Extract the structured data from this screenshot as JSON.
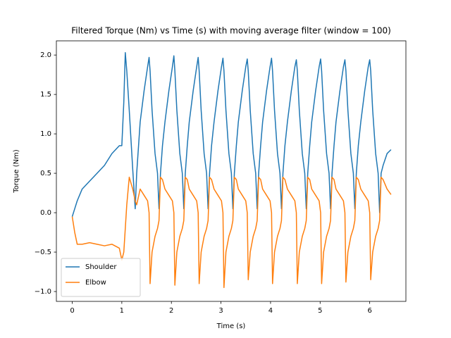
{
  "chart_data": {
    "type": "line",
    "title": "Filtered Torque (Nm) vs Time (s) with moving average filter (window = 100)",
    "x_label": "Time (s)",
    "y_label": "Torque (Nm)",
    "x": [
      0,
      0.05,
      0.1,
      0.2,
      0.35,
      0.5,
      0.65,
      0.8,
      0.95,
      1.0,
      1.04,
      1.07,
      1.1,
      1.15,
      1.22,
      1.27,
      1.3,
      1.37,
      1.45,
      1.52,
      1.55,
      1.57,
      1.61,
      1.67,
      1.72,
      1.75,
      1.78,
      1.82,
      1.87,
      1.95,
      2.02,
      2.05,
      2.07,
      2.11,
      2.17,
      2.22,
      2.25,
      2.28,
      2.32,
      2.36,
      2.44,
      2.51,
      2.54,
      2.56,
      2.6,
      2.66,
      2.71,
      2.74,
      2.77,
      2.81,
      2.86,
      2.94,
      3.01,
      3.04,
      3.06,
      3.1,
      3.16,
      3.21,
      3.24,
      3.27,
      3.31,
      3.35,
      3.43,
      3.5,
      3.53,
      3.55,
      3.59,
      3.65,
      3.7,
      3.73,
      3.76,
      3.8,
      3.84,
      3.92,
      3.99,
      4.02,
      4.04,
      4.08,
      4.14,
      4.19,
      4.22,
      4.25,
      4.29,
      4.34,
      4.42,
      4.49,
      4.52,
      4.54,
      4.58,
      4.64,
      4.69,
      4.72,
      4.75,
      4.79,
      4.83,
      4.91,
      4.98,
      5.01,
      5.03,
      5.07,
      5.13,
      5.18,
      5.21,
      5.24,
      5.28,
      5.32,
      5.4,
      5.47,
      5.5,
      5.52,
      5.56,
      5.62,
      5.67,
      5.7,
      5.73,
      5.77,
      5.82,
      5.9,
      5.97,
      6.0,
      6.02,
      6.06,
      6.12,
      6.17,
      6.2,
      6.23,
      6.27,
      6.35,
      6.43
    ],
    "series": [
      {
        "name": "Shoulder",
        "color": "#1f77b4",
        "values": [
          -0.05,
          0.05,
          0.15,
          0.3,
          0.4,
          0.5,
          0.6,
          0.75,
          0.85,
          0.85,
          1.4,
          2.03,
          1.8,
          1.3,
          0.55,
          0.05,
          0.5,
          1.15,
          1.55,
          1.85,
          1.97,
          1.8,
          1.3,
          0.75,
          0.5,
          0.05,
          0.5,
          0.85,
          1.15,
          1.55,
          1.85,
          1.99,
          1.8,
          1.3,
          0.75,
          0.5,
          0.05,
          0.5,
          0.85,
          1.15,
          1.55,
          1.85,
          1.97,
          1.8,
          1.3,
          0.75,
          0.5,
          0.05,
          0.5,
          0.85,
          1.15,
          1.55,
          1.85,
          1.96,
          1.8,
          1.3,
          0.75,
          0.5,
          0.05,
          0.5,
          0.85,
          1.15,
          1.55,
          1.85,
          1.95,
          1.8,
          1.3,
          0.75,
          0.5,
          0.05,
          0.5,
          0.85,
          1.15,
          1.55,
          1.85,
          1.96,
          1.8,
          1.3,
          0.75,
          0.5,
          0.05,
          0.5,
          0.85,
          1.15,
          1.55,
          1.85,
          1.94,
          1.8,
          1.3,
          0.75,
          0.5,
          0.05,
          0.5,
          0.85,
          1.15,
          1.55,
          1.85,
          1.95,
          1.8,
          1.3,
          0.75,
          0.5,
          0.05,
          0.5,
          0.85,
          1.15,
          1.55,
          1.85,
          1.94,
          1.8,
          1.3,
          0.75,
          0.5,
          0.05,
          0.5,
          0.85,
          1.15,
          1.55,
          1.85,
          1.94,
          1.8,
          1.3,
          0.75,
          0.5,
          0.0,
          0.5,
          0.6,
          0.75,
          0.8
        ]
      },
      {
        "name": "Elbow",
        "color": "#ff7f0e",
        "values": [
          -0.05,
          -0.25,
          -0.4,
          -0.4,
          -0.38,
          -0.4,
          -0.42,
          -0.4,
          -0.45,
          -0.6,
          -0.5,
          -0.2,
          0.1,
          0.45,
          0.3,
          0.15,
          0.1,
          0.3,
          0.22,
          0.15,
          0.0,
          -0.9,
          -0.5,
          -0.3,
          -0.2,
          -0.1,
          0.45,
          0.42,
          0.3,
          0.22,
          0.15,
          0.0,
          -0.92,
          -0.5,
          -0.3,
          -0.2,
          -0.1,
          0.45,
          0.42,
          0.3,
          0.22,
          0.15,
          0.0,
          -0.9,
          -0.5,
          -0.3,
          -0.2,
          -0.1,
          0.45,
          0.42,
          0.3,
          0.22,
          0.15,
          0.0,
          -0.95,
          -0.5,
          -0.3,
          -0.2,
          -0.1,
          0.45,
          0.42,
          0.3,
          0.22,
          0.15,
          0.0,
          -0.85,
          -0.5,
          -0.3,
          -0.2,
          -0.1,
          0.45,
          0.42,
          0.3,
          0.22,
          0.15,
          0.0,
          -0.9,
          -0.5,
          -0.3,
          -0.2,
          -0.1,
          0.45,
          0.42,
          0.3,
          0.22,
          0.15,
          0.0,
          -0.9,
          -0.5,
          -0.3,
          -0.2,
          -0.1,
          0.45,
          0.42,
          0.3,
          0.22,
          0.15,
          0.0,
          -0.9,
          -0.5,
          -0.3,
          -0.2,
          -0.1,
          0.45,
          0.42,
          0.3,
          0.22,
          0.15,
          0.0,
          -0.88,
          -0.5,
          -0.3,
          -0.2,
          -0.1,
          0.45,
          0.42,
          0.3,
          0.22,
          0.15,
          0.0,
          -0.85,
          -0.5,
          -0.3,
          -0.2,
          -0.1,
          0.45,
          0.42,
          0.3,
          0.23
        ]
      }
    ],
    "xlim": [
      -0.32,
      6.73
    ],
    "ylim": [
      -1.125,
      2.18
    ],
    "xticks": [
      0,
      1,
      2,
      3,
      4,
      5,
      6
    ],
    "yticks": [
      {
        "value": -1.0,
        "label": "−1.0"
      },
      {
        "value": -0.5,
        "label": "−0.5"
      },
      {
        "value": 0.0,
        "label": "0.0"
      },
      {
        "value": 0.5,
        "label": "0.5"
      },
      {
        "value": 1.0,
        "label": "1.0"
      },
      {
        "value": 1.5,
        "label": "1.5"
      },
      {
        "value": 2.0,
        "label": "2.0"
      }
    ],
    "legend": "lower left",
    "grid": false
  }
}
